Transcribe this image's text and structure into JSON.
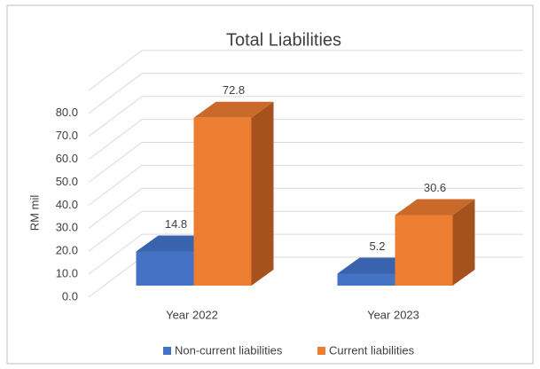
{
  "chart_data": {
    "type": "bar3d",
    "title": "Total Liabilities",
    "y_label": "RM mil",
    "categories": [
      "Year 2022",
      "Year 2023"
    ],
    "series": [
      {
        "name": "Non-current liabilities",
        "color": "#4472c4",
        "side_color": "#2f5597",
        "top_color": "#3a63ad",
        "values": [
          14.8,
          5.2
        ]
      },
      {
        "name": "Current liabilities",
        "color": "#ed7d31",
        "side_color": "#a5521f",
        "top_color": "#c96a2a",
        "values": [
          72.8,
          30.6
        ]
      }
    ],
    "ylim": [
      0,
      90
    ],
    "yticks": [
      {
        "value": 0,
        "label": "0.0"
      },
      {
        "value": 10,
        "label": "10.0"
      },
      {
        "value": 20,
        "label": "20.0"
      },
      {
        "value": 30,
        "label": "30.0"
      },
      {
        "value": 40,
        "label": "40.0"
      },
      {
        "value": 50,
        "label": "50.0"
      },
      {
        "value": 60,
        "label": "60.0"
      },
      {
        "value": 70,
        "label": "70.0"
      },
      {
        "value": 80,
        "label": "80.0"
      }
    ],
    "grid": true,
    "legend": "bottom"
  }
}
